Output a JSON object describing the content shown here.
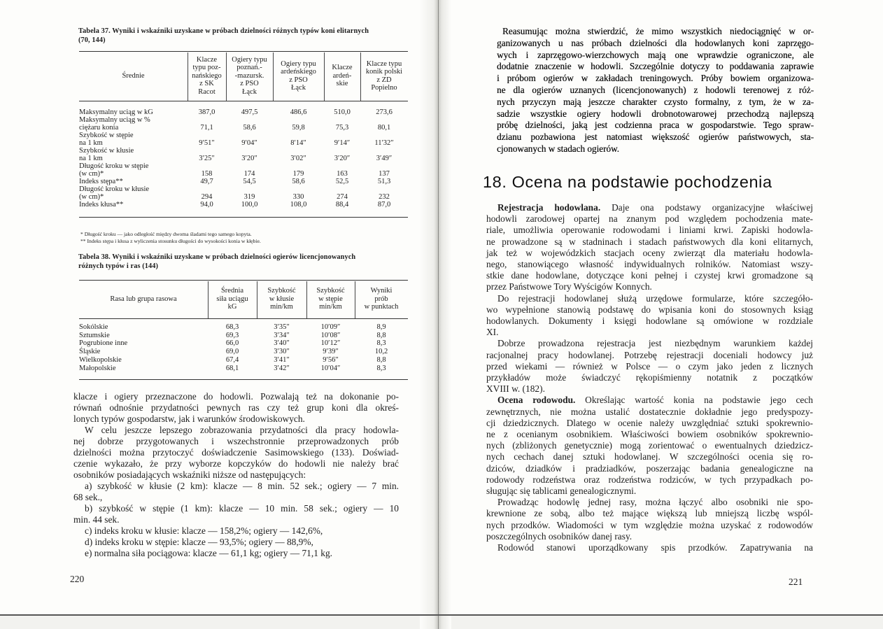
{
  "left_page": {
    "page_number": "220",
    "table37": {
      "caption": [
        "Tabela 37.  Wyniki i wskaźniki uzyskane w próbach dzielności różnych typów koni elitarnych",
        "(70, 144)"
      ],
      "headers": [
        [
          "Średnie"
        ],
        [
          "Klacze",
          "typu poz-",
          "nańskiego",
          "z SK",
          "Racot"
        ],
        [
          "Ogiery typu",
          "poznań.-",
          "-mazursk.",
          "z PSO",
          "Łąck"
        ],
        [
          "Ogiery typu",
          "ardeńskiego",
          "z PSO",
          "Łąck"
        ],
        [
          "Klacze",
          "ardeń-",
          "skie"
        ],
        [
          "Klacze typu",
          "konik polski",
          "z ZD",
          "Popielno"
        ]
      ],
      "rows": [
        {
          "label": [
            "Maksymalny uciąg w kG"
          ],
          "values": [
            "387,0",
            "497,5",
            "486,6",
            "510,0",
            "273,6"
          ]
        },
        {
          "label": [
            "Maksymalny uciąg w %",
            "ciężaru konia"
          ],
          "values": [
            "71,1",
            "58,6",
            "59,8",
            "75,3",
            "80,1"
          ]
        },
        {
          "label": [
            "Szybkość w stępie",
            "na 1 km"
          ],
          "values": [
            "9′51″",
            "9′04″",
            "8′14″",
            "9′14″",
            "11′32″"
          ]
        },
        {
          "label": [
            "Szybkość w kłusie",
            "na 1 km"
          ],
          "values": [
            "3′25″",
            "3′20″",
            "3′02″",
            "3′20″",
            "3′49″"
          ]
        },
        {
          "label": [
            "Długość kroku w stępie",
            "(w cm)*"
          ],
          "values": [
            "158",
            "174",
            "179",
            "163",
            "137"
          ]
        },
        {
          "label": [
            "Indeks stępa**"
          ],
          "values": [
            "49,7",
            "54,5",
            "58,6",
            "52,5",
            "51,3"
          ]
        },
        {
          "label": [
            "Długość kroku w kłusie",
            "(w cm)*"
          ],
          "values": [
            "294",
            "319",
            "330",
            "274",
            "232"
          ]
        },
        {
          "label": [
            "Indeks kłusa**"
          ],
          "values": [
            "94,0",
            "100,0",
            "108,0",
            "88,4",
            "87,0"
          ]
        }
      ],
      "footnotes": [
        "* Długość kroku — jako odległość między dwoma śladami tego samego kopyta.",
        "** Indeks stępa i kłusa z wyliczenia stosunku długości do wysokości konia w kłębie."
      ]
    },
    "table38": {
      "caption": [
        "Tabela 38.  Wyniki i wskaźniki uzyskane w próbach dzielności ogierów licencjonowanych",
        "różnych typów i ras (144)"
      ],
      "headers": [
        [
          "Rasa lub grupa rasowa"
        ],
        [
          "Średnia",
          "siła uciągu",
          "kG"
        ],
        [
          "Szybkość",
          "w kłusie",
          "min/km"
        ],
        [
          "Szybkość",
          "w stępie",
          "min/km"
        ],
        [
          "Wyniki",
          "prób",
          "w punktach"
        ]
      ],
      "rows": [
        {
          "label": [
            "Sokólskie"
          ],
          "values": [
            "68,3",
            "3′35″",
            "10′09″",
            "8,9"
          ]
        },
        {
          "label": [
            "Sztumskie"
          ],
          "values": [
            "69,3",
            "3′34″",
            "10′08″",
            "8,8"
          ]
        },
        {
          "label": [
            "Pogrubione inne"
          ],
          "values": [
            "66,0",
            "3′40″",
            "10′12″",
            "8,3"
          ]
        },
        {
          "label": [
            "Śląskie"
          ],
          "values": [
            "69,0",
            "3′30″",
            "9′39″",
            "10,2"
          ]
        },
        {
          "label": [
            "Wielkopolskie"
          ],
          "values": [
            "67,4",
            "3′41″",
            "9′56″",
            "8,8"
          ]
        },
        {
          "label": [
            "Małopolskie"
          ],
          "values": [
            "68,1",
            "3′42″",
            "10′04″",
            "8,3"
          ]
        }
      ]
    },
    "paragraphs": [
      {
        "indent": false,
        "lines": [
          "klacze i ogiery przeznaczone do hodowli. Pozwalają też na dokonanie po-",
          "równań odnośnie przydatności pewnych ras czy też grup koni dla okreś-",
          "lonych typów gospodarstw, jak i warunków środowiskowych."
        ]
      },
      {
        "indent": true,
        "lines": [
          "W celu jeszcze lepszego zobrazowania przydatności dla pracy hodowla-",
          "nej dobrze przygotowanych i wszechstronnie przeprowadzonych prób",
          "dzielności można przytoczyć doświadczenie Sasimowskiego (133). Doświad-",
          "czenie wykazało, że przy wyborze kopczyków do hodowli nie należy brać",
          "osobników posiadających wskaźniki niższe od następujących:"
        ]
      },
      {
        "indent": true,
        "lines": [
          "a) szybkość w kłusie (2 km): klacze — 8 min. 52 sek.; ogiery — 7 min.",
          "68 sek.,"
        ]
      },
      {
        "indent": true,
        "lines": [
          "b) szybkość w stępie (1 km): klacze — 10 min. 58 sek.; ogiery — 10",
          "min. 44 sek."
        ]
      },
      {
        "indent": true,
        "lines": [
          "c) indeks kroku w kłusie: klacze — 158,2%; ogiery — 142,6%,"
        ]
      },
      {
        "indent": true,
        "lines": [
          "d) indeks kroku w stępie: klacze — 93,5%; ogiery — 88,9%,"
        ]
      },
      {
        "indent": true,
        "lines": [
          "e) normalna siła pociągowa: klacze — 61,1 kg; ogiery — 71,1 kg."
        ]
      }
    ]
  },
  "right_page": {
    "page_number": "221",
    "intro_paragraph": {
      "indent": true,
      "lines": [
        "Reasumując można stwierdzić, że mimo wszystkich niedociągnięć w or-",
        "ganizowanych u nas próbach dzielności dla hodowlanych koni zaprzęgo-",
        "wych i zaprzęgowo-wierzchowych mają one wprawdzie ograniczone, ale",
        "dodatnie znaczenie w hodowli. Szczególnie dotyczy to poddawania zaprawie",
        "i próbom ogierów w zakładach treningowych. Próby bowiem organizowa-",
        "ne dla ogierów uznanych (licencjonowanych) z hodowli terenowej z róż-",
        "nych przyczyn mają jeszcze charakter czysto formalny, z tym, że w za-",
        "sadzie wszystkie ogiery hodowli drobnotowarowej przechodzą najlepszą",
        "próbę dzielności, jaką jest codzienna praca w gospodarstwie. Tego spraw-",
        "dzianu pozbawiona jest natomiast większość ogierów państwowych, sta-",
        "cjonowanych w stadach ogierów."
      ]
    },
    "section_heading": "18. Ocena na podstawie pochodzenia",
    "paragraphs": [
      {
        "indent": true,
        "lead": "Rejestracja hodowlana.",
        "lines": [
          "Daje ona podstawy organizacyjne właściwej",
          "hodowli zarodowej opartej na znanym pod względem pochodzenia mate-",
          "riale, umożliwia operowanie rodowodami i liniami krwi. Zapiski hodowla-",
          "ne prowadzone są w stadninach i stadach państwowych dla koni elitarnych,",
          "jak też w wojewódzkich stacjach oceny zwierząt dla materiału hodowla-",
          "nego, stanowiącego własność indywidualnych rolników. Natomiast wszy-",
          "stkie dane hodowlane, dotyczące koni pełnej i czystej krwi gromadzone są",
          "przez Państwowe Tory Wyścigów Konnych."
        ]
      },
      {
        "indent": true,
        "lines": [
          "Do rejestracji hodowlanej służą urzędowe formularze, które szczegóło-",
          "wo wypełnione stanowią podstawę do wpisania koni do stosownych ksiąg",
          "hodowlanych. Dokumenty i księgi hodowlane są omówione w rozdziale",
          "XI."
        ]
      },
      {
        "indent": true,
        "lines": [
          "Dobrze prowadzona rejestracja jest niezbędnym warunkiem każdej",
          "racjonalnej pracy hodowlanej. Potrzebę rejestracji doceniali hodowcy już",
          "przed wiekami — również w Polsce — o czym jako jeden z licznych",
          "przykładów może świadczyć rękopiśmienny notatnik z początków",
          "XVIII w. (182)."
        ]
      },
      {
        "indent": true,
        "lead": "Ocena rodowodu.",
        "lines": [
          "Określając wartość konia na podstawie jego cech",
          "zewnętrznych, nie można ustalić dostatecznie dokładnie jego predyspozy-",
          "cji dziedzicznych. Dlatego w ocenie należy uwzględniać sztuki spokrewnio-",
          "ne z ocenianym osobnikiem. Właściwości bowiem osobników spokrewnio-",
          "nych (zbliżonych genetycznie) mogą zorientować o ewentualnych dziedzicz-",
          "nych cechach danej sztuki hodowlanej. W szczególności ocenia się ro-",
          "dziców, dziadków i pradziadków, poszerzając badania genealogiczne na",
          "rodowody rodzeństwa oraz rodzeństwa rodziców, w tych przypadkach po-",
          "sługując się tablicami genealogicznymi."
        ]
      },
      {
        "indent": true,
        "lines": [
          "Prowadząc hodowlę jednej rasy, można łączyć albo osobniki nie spo-",
          "krewnione ze sobą, albo też mające większą lub mniejszą liczbę wspól-",
          "nych przodków. Wiadomości w tym względzie można uzyskać z rodowodów",
          "poszczególnych osobników danej rasy."
        ]
      },
      {
        "indent": true,
        "lines": [
          "Rodowód stanowi uporządkowany spis przodków. Zapatrywania na"
        ]
      }
    ]
  }
}
